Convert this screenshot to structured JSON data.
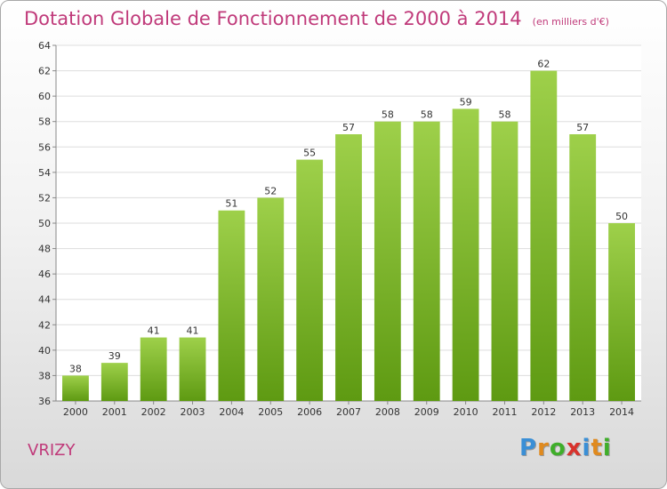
{
  "header": {
    "title": "Dotation Globale de Fonctionnement de 2000 à 2014",
    "units": "(en milliers d'€)"
  },
  "footer": {
    "commune": "VRIZY",
    "brand_letters": [
      "P",
      "r",
      "o",
      "x",
      "i",
      "t",
      "i"
    ]
  },
  "colors": {
    "accent": "#c03a7a",
    "bar_top": "#9ed04a",
    "bar_bottom": "#5e9a12",
    "brand": [
      "#3a8fd6",
      "#e08a1e",
      "#3fae2a",
      "#d8322c",
      "#3a8fd6",
      "#e08a1e",
      "#3fae2a"
    ]
  },
  "chart_data": {
    "type": "bar",
    "title": "Dotation Globale de Fonctionnement de 2000 à 2014",
    "subtitle": "(en milliers d'€)",
    "categories": [
      "2000",
      "2001",
      "2002",
      "2003",
      "2004",
      "2005",
      "2006",
      "2007",
      "2008",
      "2009",
      "2010",
      "2011",
      "2012",
      "2013",
      "2014"
    ],
    "values": [
      38,
      39,
      41,
      41,
      51,
      52,
      55,
      57,
      58,
      58,
      59,
      58,
      62,
      57,
      50
    ],
    "ylim": [
      36,
      64
    ],
    "yticks": [
      36,
      38,
      40,
      42,
      44,
      46,
      48,
      50,
      52,
      54,
      56,
      58,
      60,
      62,
      64
    ],
    "grid": true
  }
}
